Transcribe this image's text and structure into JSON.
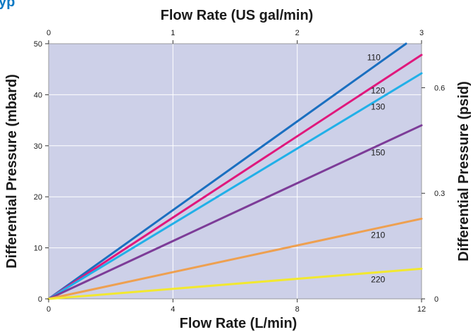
{
  "header": {
    "clipped_text": "yp"
  },
  "chart_data": {
    "type": "line",
    "xlabel": "Flow Rate (L/min)",
    "x2label": "Flow Rate (US gal/min)",
    "ylabel": "Differential Pressure (mbard)",
    "y2label": "Differential Pressure (psid)",
    "xlim": [
      0,
      12
    ],
    "ylim": [
      0,
      50
    ],
    "x2lim": [
      0,
      3
    ],
    "y2lim": [
      0,
      0.725
    ],
    "x_ticks": [
      "0",
      "4",
      "8",
      "12"
    ],
    "x_tick_values": [
      0,
      4,
      8,
      12
    ],
    "y_ticks": [
      "0",
      "10",
      "20",
      "30",
      "40",
      "50"
    ],
    "y_tick_values": [
      0,
      10,
      20,
      30,
      40,
      50
    ],
    "x2_ticks": [
      "0",
      "1",
      "2",
      "3"
    ],
    "x2_tick_values": [
      0,
      1,
      2,
      3
    ],
    "y2_ticks": [
      "0",
      "0.3",
      "0.6"
    ],
    "y2_tick_values": [
      0,
      0.3,
      0.6
    ],
    "grid": true,
    "background_color": "#cdd0e8",
    "series": [
      {
        "name": "110",
        "color": "#1a6fc0",
        "x": [
          0,
          11.5
        ],
        "y": [
          0,
          50
        ]
      },
      {
        "name": "120",
        "color": "#e0187c",
        "x": [
          0,
          12
        ],
        "y": [
          0,
          47.8
        ]
      },
      {
        "name": "130",
        "color": "#21b0e8",
        "x": [
          0,
          12
        ],
        "y": [
          0,
          44.2
        ]
      },
      {
        "name": "150",
        "color": "#7d3c98",
        "x": [
          0,
          12
        ],
        "y": [
          0,
          34
        ]
      },
      {
        "name": "210",
        "color": "#eea050",
        "x": [
          0,
          12
        ],
        "y": [
          0,
          15.7
        ]
      },
      {
        "name": "220",
        "color": "#f2e830",
        "x": [
          0,
          12
        ],
        "y": [
          0,
          5.9
        ]
      }
    ]
  }
}
